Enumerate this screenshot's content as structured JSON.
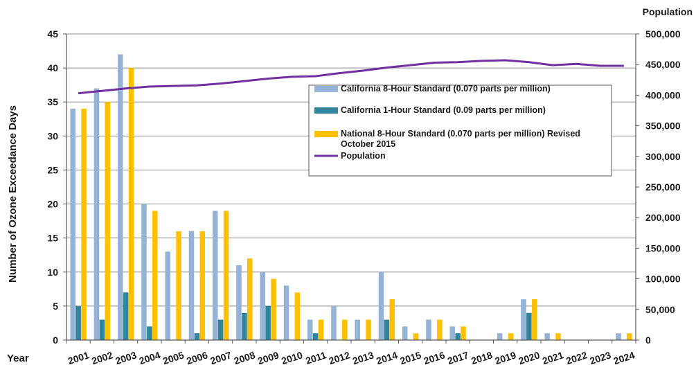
{
  "chart_data": {
    "type": "bar",
    "xlabel": "Year",
    "ylabel": "Number of Ozone Exceedance Days",
    "y2label": "Population",
    "categories": [
      "2001",
      "2002",
      "2003",
      "2004",
      "2005",
      "2006",
      "2007",
      "2008",
      "2009",
      "2010",
      "2011",
      "2012",
      "2013",
      "2014",
      "2015",
      "2016",
      "2017",
      "2018",
      "2019",
      "2020",
      "2021",
      "2022",
      "2023",
      "2024"
    ],
    "ylim": [
      0,
      45
    ],
    "yticks": [
      "0",
      "5",
      "10",
      "15",
      "20",
      "25",
      "30",
      "35",
      "40",
      "45"
    ],
    "y2lim": [
      0,
      500000
    ],
    "y2ticks": [
      "0",
      "50,000",
      "100,000",
      "150,000",
      "200,000",
      "250,000",
      "300,000",
      "350,000",
      "400,000",
      "450,000",
      "500,000"
    ],
    "grid": true,
    "legend_placement": "center-right",
    "series": [
      {
        "name": "California 8-Hour Standard (0.070 parts per million)",
        "type": "bar",
        "color": "#95B3D7",
        "values": [
          34,
          37,
          42,
          20,
          13,
          16,
          19,
          11,
          10,
          8,
          3,
          5,
          3,
          10,
          2,
          3,
          2,
          0,
          1,
          6,
          1,
          0,
          0,
          1
        ]
      },
      {
        "name": "California 1-Hour Standard (0.09 parts per million)",
        "type": "bar",
        "color": "#31849B",
        "values": [
          5,
          3,
          7,
          2,
          0,
          1,
          3,
          4,
          5,
          0,
          1,
          0,
          0,
          3,
          0,
          0,
          1,
          0,
          0,
          4,
          0,
          0,
          0,
          0
        ]
      },
      {
        "name": "National 8-Hour Standard (0.070 parts per million) Revised October 2015",
        "name_lines": [
          "National 8-Hour Standard (0.070 parts per million) Revised",
          "October 2015"
        ],
        "type": "bar",
        "color": "#FFC000",
        "values": [
          34,
          35,
          40,
          19,
          16,
          16,
          19,
          12,
          9,
          7,
          3,
          3,
          3,
          6,
          1,
          3,
          2,
          0,
          1,
          6,
          1,
          0,
          0,
          1
        ]
      },
      {
        "name": "Population",
        "type": "line",
        "axis": "secondary",
        "color": "#7030A0",
        "values": [
          403000,
          407000,
          411000,
          414000,
          415000,
          416000,
          419000,
          423000,
          427000,
          430000,
          431000,
          436000,
          440000,
          445000,
          449000,
          453000,
          454000,
          456000,
          457000,
          454000,
          449000,
          451000,
          448000,
          448000
        ]
      }
    ]
  }
}
